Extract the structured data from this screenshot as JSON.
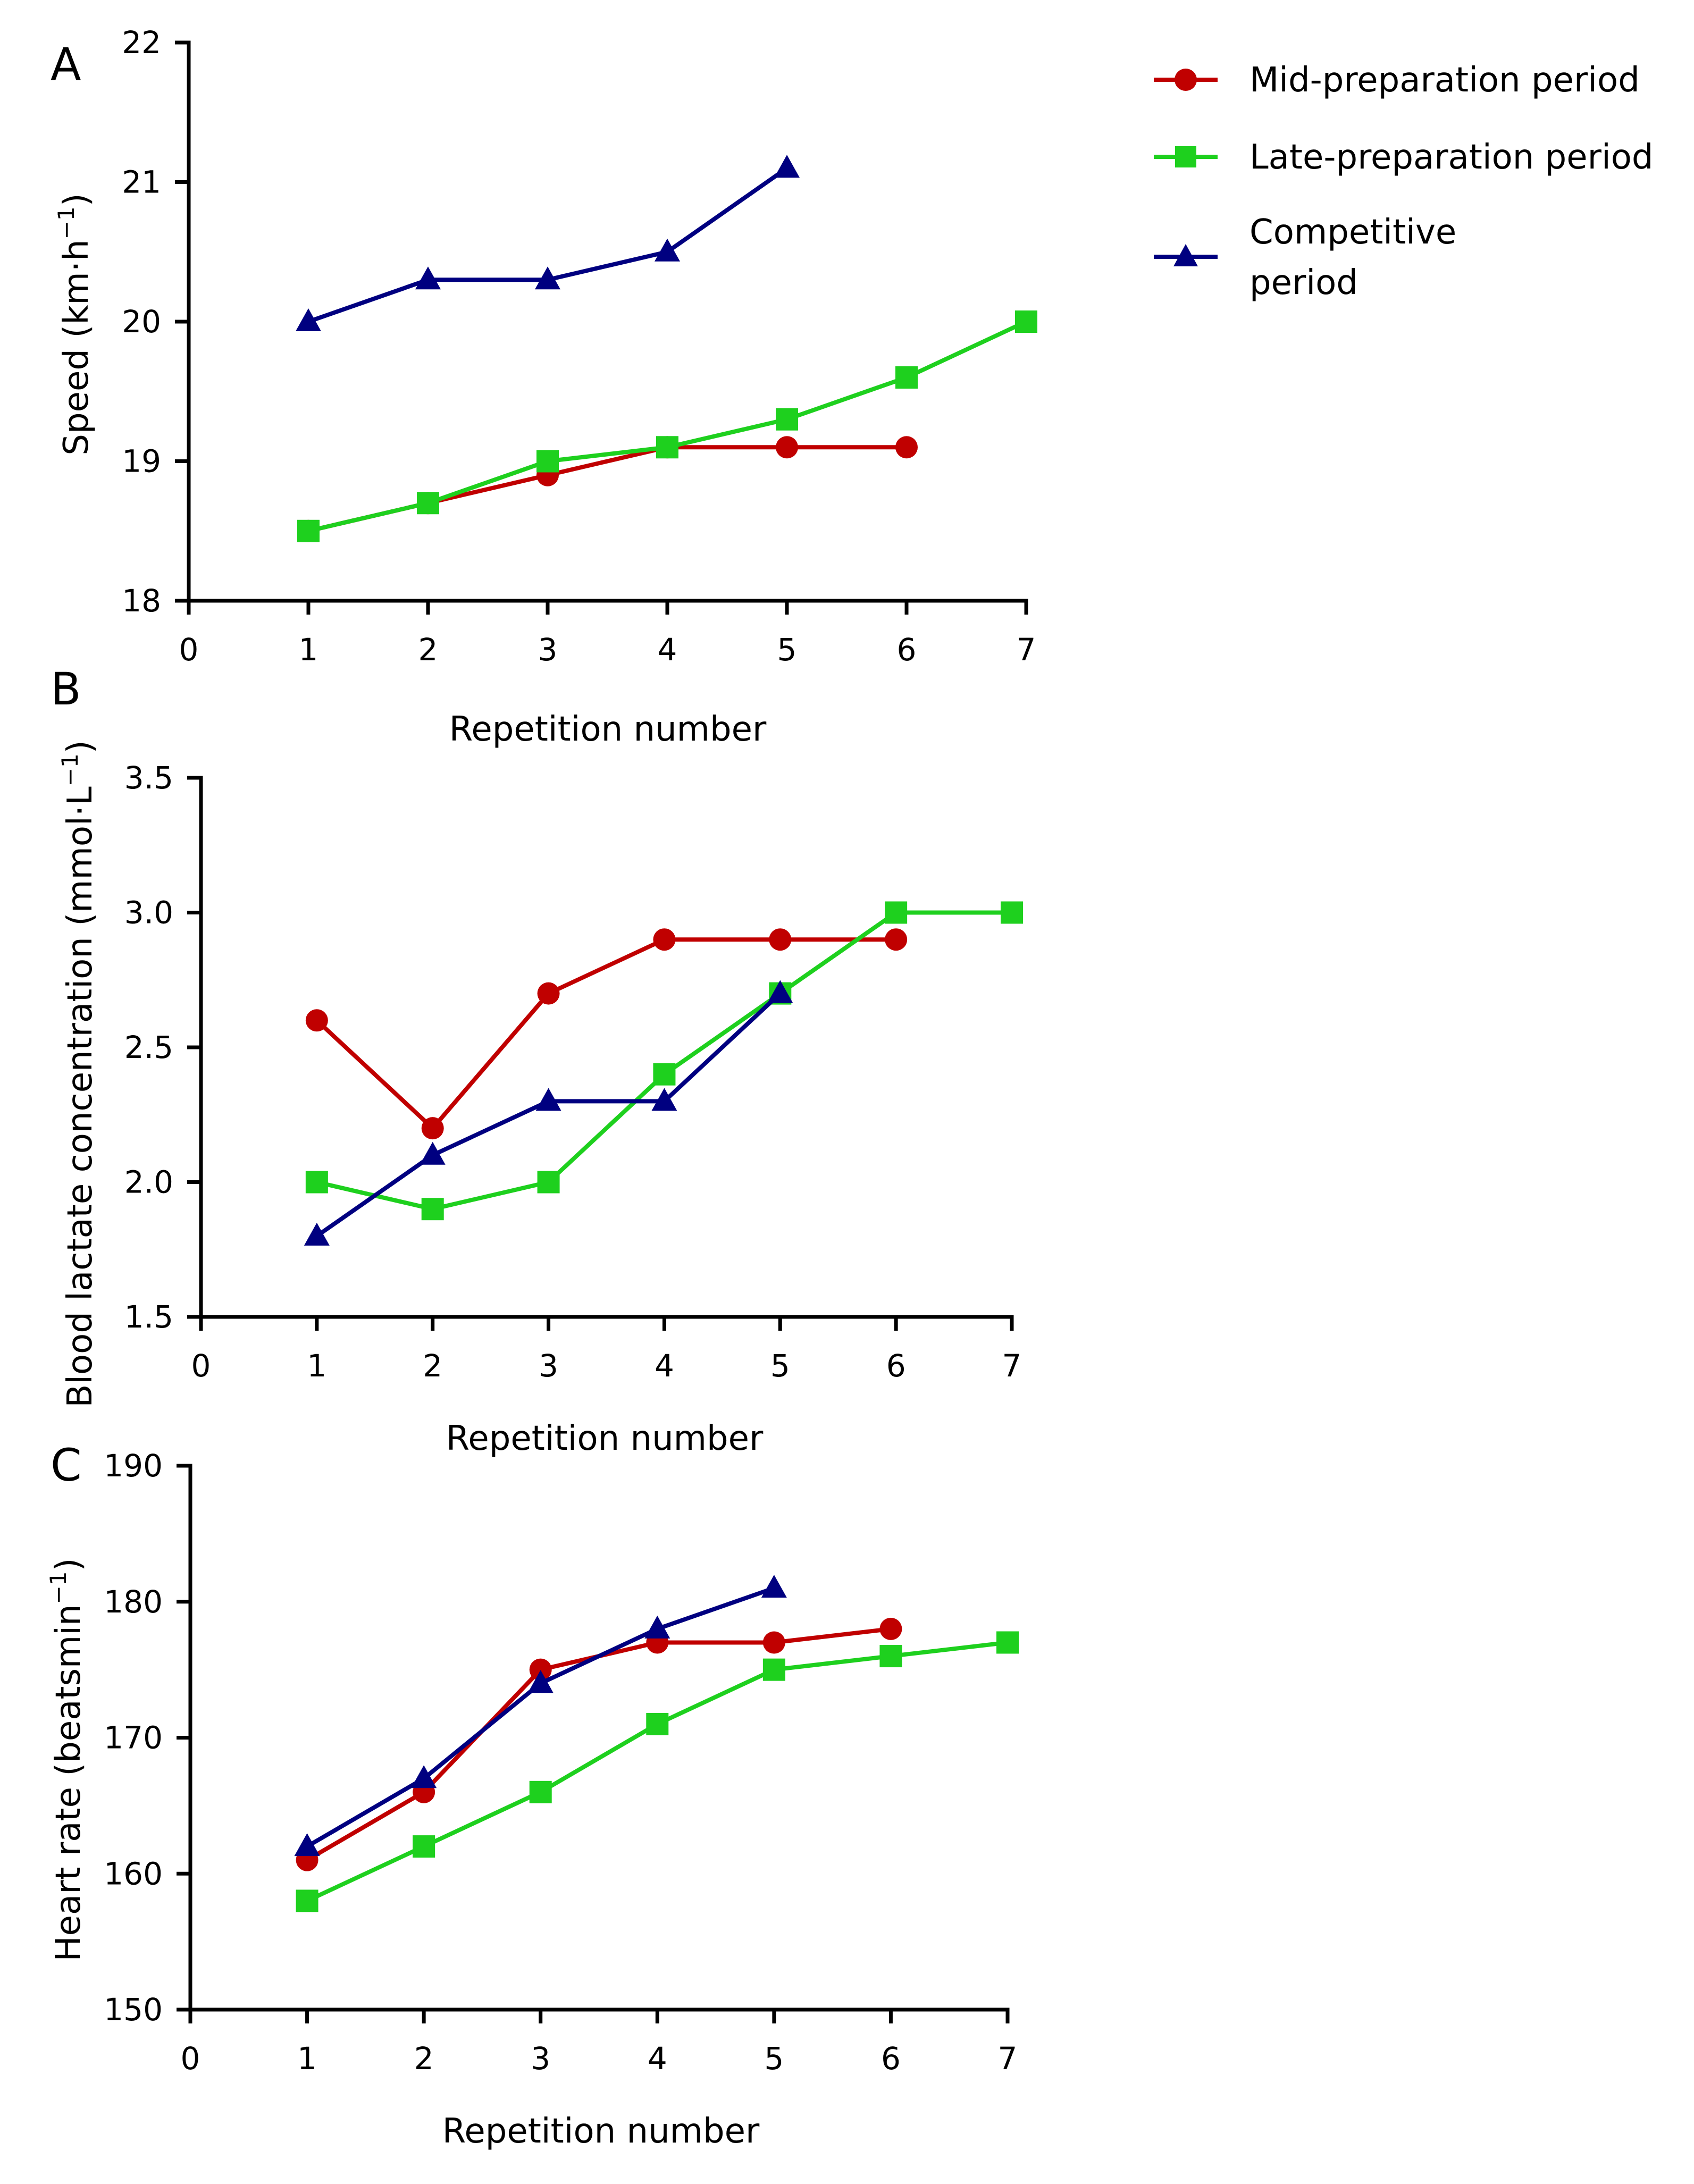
{
  "legend": {
    "position": "top-right",
    "entries": [
      {
        "label": "Mid-preparation period",
        "color": "#c00000",
        "marker": "circle"
      },
      {
        "label": "Late-preparation period",
        "color": "#1ed01e",
        "marker": "square"
      },
      {
        "label": "Competitive period",
        "color": "#000080",
        "marker": "triangle"
      }
    ]
  },
  "chart_data": [
    {
      "type": "line",
      "panel_label": "A",
      "xlabel": "Repetition number",
      "ylabel": "Speed (km·h-1)",
      "ylabel_parts": {
        "main": "Speed (km·h",
        "sup": "−1",
        "tail": ")"
      },
      "xlim": [
        0,
        7
      ],
      "ylim": [
        18,
        22
      ],
      "xticks": [
        0,
        1,
        2,
        3,
        4,
        5,
        6,
        7
      ],
      "yticks": [
        18,
        19,
        20,
        21,
        22
      ],
      "ytick_labels": [
        "18",
        "19",
        "20",
        "21",
        "22"
      ],
      "series": [
        {
          "name": "Mid-preparation period",
          "color": "#c00000",
          "marker": "circle",
          "x": [
            1,
            2,
            3,
            4,
            5,
            6
          ],
          "y": [
            18.5,
            18.7,
            18.9,
            19.1,
            19.1,
            19.1
          ]
        },
        {
          "name": "Late-preparation period",
          "color": "#1ed01e",
          "marker": "square",
          "x": [
            1,
            2,
            3,
            4,
            5,
            6,
            7
          ],
          "y": [
            18.5,
            18.7,
            19.0,
            19.1,
            19.3,
            19.6,
            20.0
          ]
        },
        {
          "name": "Competitive period",
          "color": "#000080",
          "marker": "triangle",
          "x": [
            1,
            2,
            3,
            4,
            5
          ],
          "y": [
            20.0,
            20.3,
            20.3,
            20.5,
            21.1
          ]
        }
      ]
    },
    {
      "type": "line",
      "panel_label": "B",
      "xlabel": "Repetition number",
      "ylabel": "Blood lactate concentration (mmol·L-1)",
      "ylabel_parts": {
        "main": "Blood lactate concentration (mmol·L",
        "sup": "−1",
        "tail": ")"
      },
      "xlim": [
        0,
        7
      ],
      "ylim": [
        1.5,
        3.5
      ],
      "xticks": [
        0,
        1,
        2,
        3,
        4,
        5,
        6,
        7
      ],
      "yticks": [
        1.5,
        2.0,
        2.5,
        3.0,
        3.5
      ],
      "ytick_labels": [
        "1.5",
        "2.0",
        "2.5",
        "3.0",
        "3.5"
      ],
      "series": [
        {
          "name": "Mid-preparation period",
          "color": "#c00000",
          "marker": "circle",
          "x": [
            1,
            2,
            3,
            4,
            5,
            6
          ],
          "y": [
            2.6,
            2.2,
            2.7,
            2.9,
            2.9,
            2.9
          ]
        },
        {
          "name": "Late-preparation period",
          "color": "#1ed01e",
          "marker": "square",
          "x": [
            1,
            2,
            3,
            4,
            5,
            6,
            7
          ],
          "y": [
            2.0,
            1.9,
            2.0,
            2.4,
            2.7,
            3.0,
            3.0
          ]
        },
        {
          "name": "Competitive period",
          "color": "#000080",
          "marker": "triangle",
          "x": [
            1,
            2,
            3,
            4,
            5
          ],
          "y": [
            1.8,
            2.1,
            2.3,
            2.3,
            2.7
          ]
        }
      ]
    },
    {
      "type": "line",
      "panel_label": "C",
      "xlabel": "Repetition number",
      "ylabel": "Heart rate (beatsmin-1)",
      "ylabel_parts": {
        "main": "Heart rate (beatsmin",
        "sup": "−1",
        "tail": ")"
      },
      "xlim": [
        0,
        7
      ],
      "ylim": [
        150,
        190
      ],
      "xticks": [
        0,
        1,
        2,
        3,
        4,
        5,
        6,
        7
      ],
      "yticks": [
        150,
        160,
        170,
        180,
        190
      ],
      "ytick_labels": [
        "150",
        "160",
        "170",
        "180",
        "190"
      ],
      "series": [
        {
          "name": "Mid-preparation period",
          "color": "#c00000",
          "marker": "circle",
          "x": [
            1,
            2,
            3,
            4,
            5,
            6
          ],
          "y": [
            161,
            166,
            175,
            177,
            177,
            178
          ]
        },
        {
          "name": "Late-preparation period",
          "color": "#1ed01e",
          "marker": "square",
          "x": [
            1,
            2,
            3,
            4,
            5,
            6,
            7
          ],
          "y": [
            158,
            162,
            166,
            171,
            175,
            176,
            177
          ]
        },
        {
          "name": "Competitive period",
          "color": "#000080",
          "marker": "triangle",
          "x": [
            1,
            2,
            3,
            4,
            5
          ],
          "y": [
            162,
            167,
            174,
            178,
            181
          ]
        }
      ]
    }
  ]
}
